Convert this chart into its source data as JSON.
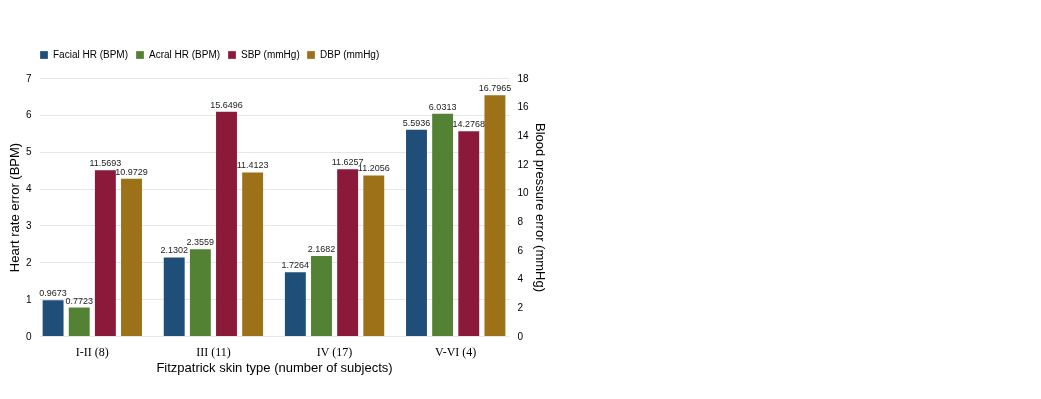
{
  "chart_data": {
    "type": "bar",
    "xlabel": "Fitzpatrick skin type (number of subjects)",
    "ylabel": "Heart rate error (BPM)",
    "y2label": "Blood pressure error (mmHg)",
    "categories": [
      "I-II (8)",
      "III (11)",
      "IV (17)",
      "V-VI (4)"
    ],
    "series": [
      {
        "name": "Facial HR (BPM)",
        "color": "#1f4e79",
        "values": [
          0.9673,
          2.1302,
          1.7264,
          5.5936
        ]
      },
      {
        "name": "Acral HR (BPM)",
        "color": "#548235",
        "values": [
          0.7723,
          2.3559,
          2.1682,
          6.0313
        ]
      },
      {
        "name": "SBP (mmHg)",
        "color": "#8b1a3a",
        "axis": "y2",
        "values": [
          11.5693,
          15.6496,
          11.6257,
          14.2768
        ]
      },
      {
        "name": "DBP (mmHg)",
        "color": "#9c7117",
        "axis": "y2",
        "values": [
          10.9729,
          11.4123,
          11.2056,
          16.7965
        ]
      }
    ],
    "ylim": [
      0,
      7
    ],
    "yticks": [
      0,
      1,
      2,
      3,
      4,
      5,
      6,
      7
    ],
    "y2lim": [
      0,
      18
    ],
    "y2ticks": [
      0,
      2,
      4,
      6,
      8,
      10,
      12,
      14,
      16,
      18
    ],
    "grid": "y",
    "legend": "top",
    "data_labels": true
  }
}
